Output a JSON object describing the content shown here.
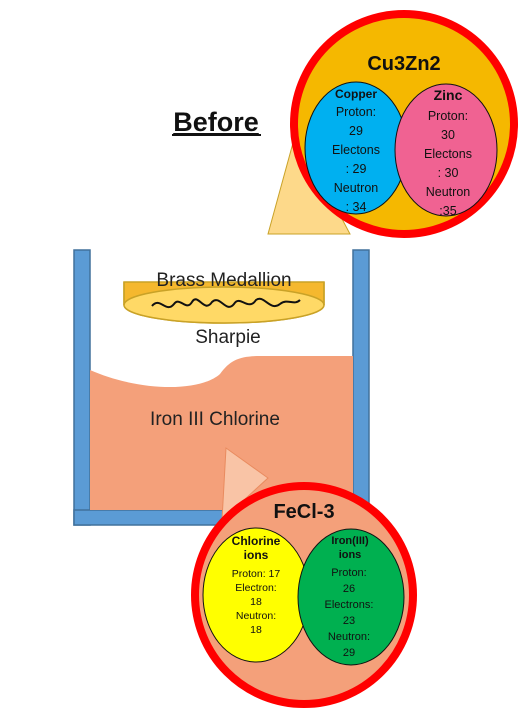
{
  "before_label": "Before",
  "medallion": {
    "label": "Brass Medallion",
    "marker_label": "Sharpie"
  },
  "solution": {
    "label": "Iron III Chlorine"
  },
  "brass_callout": {
    "title": "Cu3Zn2",
    "left": {
      "name": "Copper",
      "lines": [
        "Proton:",
        "29",
        "Electons",
        ": 29",
        "Neutron",
        ": 34"
      ]
    },
    "right": {
      "name": "Zinc",
      "lines": [
        "Proton:",
        "30",
        "Electons",
        ": 30",
        "Neutron",
        ":35"
      ]
    }
  },
  "solution_callout": {
    "title": "FeCl-3",
    "left": {
      "name_lines": [
        "Chlorine",
        "ions"
      ],
      "lines": [
        "Proton: 17",
        "Electron:",
        "18",
        "Neutron:",
        "18"
      ]
    },
    "right": {
      "name_lines": [
        "Iron(III)",
        "ions"
      ],
      "lines": [
        "Proton:",
        "26",
        "Electrons:",
        "23",
        "Neutron:",
        "29"
      ]
    }
  },
  "colors": {
    "beaker": "#5b9bd5",
    "beaker_stroke": "#41719c",
    "liquid": "#f4a07a",
    "medallion_fill": "#f5b82e",
    "medallion_top": "#ffd966",
    "ring": "#ff0000",
    "brass_circle": "#f5b800",
    "copper": "#00b0f0",
    "zinc": "#f06292",
    "fecl_circle": "#f4a07a",
    "chlorine": "#ffff00",
    "iron": "#00b050",
    "pointer_top": "#fdd98a",
    "pointer_bottom": "#f9c4a6"
  }
}
